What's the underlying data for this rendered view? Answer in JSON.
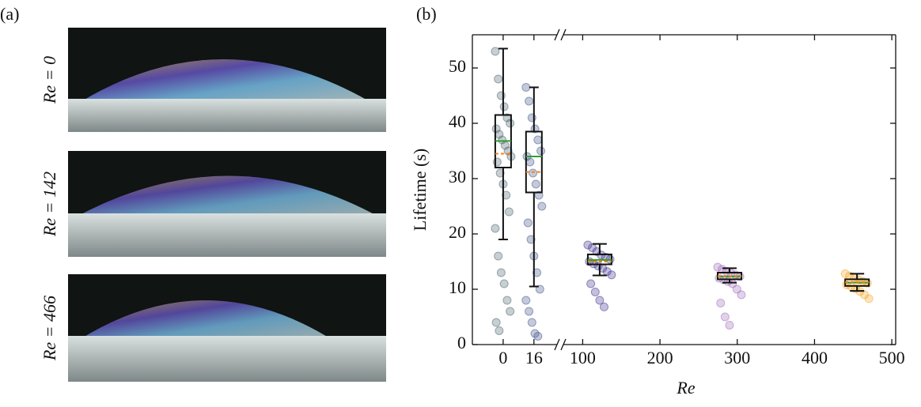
{
  "photos": {
    "panel_label": "(a)",
    "labels": [
      "Re = 0",
      "Re = 142",
      "Re = 466"
    ]
  },
  "chart_data": {
    "type": "box",
    "panel_label": "(b)",
    "x_label": "Re",
    "y_label": "Lifetime (s)",
    "x_segments": [
      {
        "xlim": [
          -16,
          28
        ],
        "xticks": [
          0,
          16
        ]
      },
      {
        "xlim": [
          75,
          505
        ],
        "xticks": [
          100,
          200,
          300,
          400,
          500
        ]
      }
    ],
    "ylim": [
      0,
      56
    ],
    "yticks": [
      0,
      10,
      20,
      30,
      40,
      50
    ],
    "median_color": "#2ca02c",
    "mean_color": "#ff7f0e",
    "series": [
      {
        "x": 0,
        "color": "#46606a",
        "whislo": 19,
        "q1": 32,
        "median": 36.8,
        "mean": 34.5,
        "q3": 41.5,
        "whishi": 53.5,
        "points": [
          53,
          48,
          45,
          43,
          41,
          40,
          39,
          38,
          37,
          36,
          35,
          34,
          33,
          31,
          29,
          27,
          24,
          21,
          16,
          13,
          11,
          8,
          6,
          4,
          2.5
        ]
      },
      {
        "x": 16,
        "color": "#3b4f86",
        "whislo": 10.5,
        "q1": 27.5,
        "median": 34,
        "mean": 31.2,
        "q3": 38.5,
        "whishi": 46.5,
        "points": [
          46.5,
          44,
          41,
          39,
          37,
          35,
          34,
          33,
          31,
          29,
          27,
          25,
          22,
          19,
          16,
          13,
          10,
          8,
          6,
          4,
          2,
          1.5
        ]
      },
      {
        "x": 122,
        "color": "#3b2e8a",
        "whislo": 12.5,
        "q1": 14.5,
        "median": 15.3,
        "mean": 15,
        "q3": 16.3,
        "whishi": 18.2,
        "points": [
          18,
          17.5,
          16.8,
          16.2,
          15.8,
          15.4,
          15,
          14.6,
          14.2,
          13.8,
          13.2,
          12.6,
          11,
          9.5,
          8,
          6.8
        ]
      },
      {
        "x": 290,
        "color": "#9b6bb8",
        "whislo": 11.2,
        "q1": 11.8,
        "median": 12.3,
        "mean": 12.4,
        "q3": 13,
        "whishi": 13.8,
        "points": [
          14,
          13.6,
          13.2,
          12.9,
          12.6,
          12.3,
          12,
          11.7,
          11.4,
          11,
          10,
          9,
          7.5,
          5,
          3.5
        ]
      },
      {
        "x": 455,
        "color": "#f5a623",
        "whislo": 9.7,
        "q1": 10.6,
        "median": 11.2,
        "mean": 11.3,
        "q3": 11.8,
        "whishi": 12.8,
        "points": [
          12.8,
          12.4,
          12,
          11.7,
          11.4,
          11.1,
          10.8,
          10.5,
          10.1,
          9.6,
          9,
          8.3
        ]
      }
    ]
  }
}
